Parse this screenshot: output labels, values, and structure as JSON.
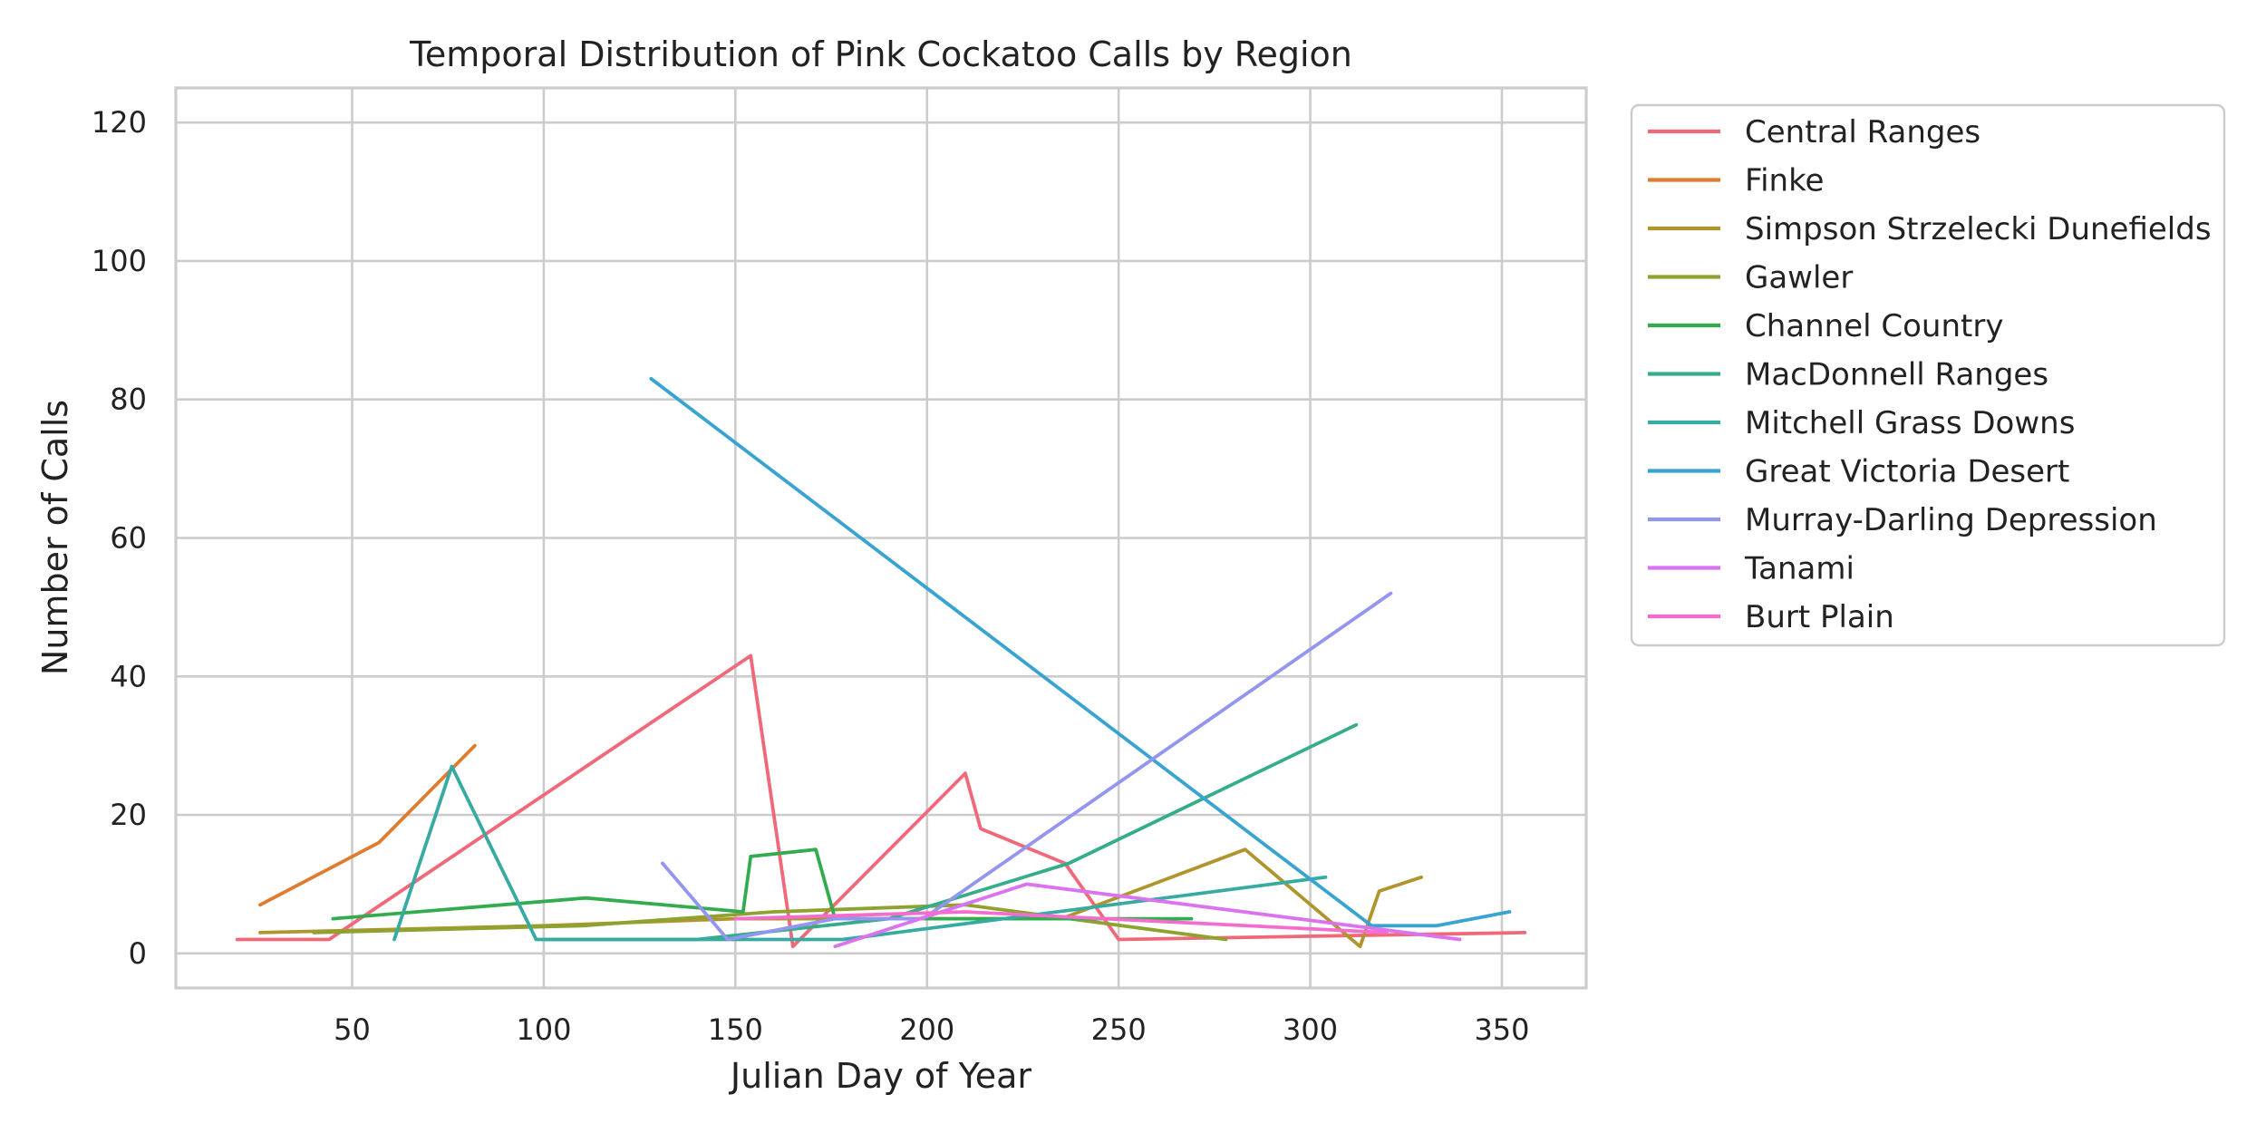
{
  "chart_data": {
    "type": "line",
    "title": "Temporal Distribution of Pink Cockatoo Calls by Region",
    "xlabel": "Julian Day of Year",
    "ylabel": "Number of Calls",
    "xlim": [
      4,
      372
    ],
    "ylim": [
      -5,
      125
    ],
    "xticks": [
      50,
      100,
      150,
      200,
      250,
      300,
      350
    ],
    "yticks": [
      0,
      20,
      40,
      60,
      80,
      100,
      120
    ],
    "grid": true,
    "legend_position": "upper right, outside plot",
    "series": [
      {
        "name": "Central Ranges",
        "color": "#f0697a",
        "x": [
          20,
          44,
          154,
          165,
          210,
          214,
          236,
          250,
          356
        ],
        "y": [
          2,
          2,
          43,
          1,
          26,
          18,
          13,
          2,
          3
        ]
      },
      {
        "name": "Finke",
        "color": "#e07c30",
        "x": [
          26,
          57,
          82
        ],
        "y": [
          7,
          16,
          30
        ]
      },
      {
        "name": "Simpson Strzelecki Dunefields",
        "color": "#b0952e",
        "x": [
          26,
          100,
          150,
          235,
          283,
          313,
          318,
          329
        ],
        "y": [
          3,
          4,
          5,
          5,
          15,
          1,
          9,
          11
        ]
      },
      {
        "name": "Gawler",
        "color": "#8ea22f",
        "x": [
          40,
          110,
          160,
          210,
          278
        ],
        "y": [
          3,
          4,
          6,
          7,
          2
        ]
      },
      {
        "name": "Channel Country",
        "color": "#33ac4f",
        "x": [
          45,
          111,
          152,
          154,
          171,
          176,
          269
        ],
        "y": [
          5,
          8,
          6,
          14,
          15,
          5,
          5
        ]
      },
      {
        "name": "MacDonnell Ranges",
        "color": "#35ad8a",
        "x": [
          100,
          140,
          190,
          237,
          312
        ],
        "y": [
          2,
          2,
          5,
          13,
          33
        ]
      },
      {
        "name": "Mitchell Grass Downs",
        "color": "#37aaa2",
        "x": [
          61,
          76,
          98,
          130,
          178,
          304
        ],
        "y": [
          2,
          27,
          2,
          2,
          2,
          11
        ]
      },
      {
        "name": "Great Victoria Desert",
        "color": "#39a3d2",
        "x": [
          128,
          316,
          333,
          352
        ],
        "y": [
          83,
          4,
          4,
          6
        ]
      },
      {
        "name": "Murray-Darling Depression",
        "color": "#9395ef",
        "x": [
          131,
          148,
          176,
          199,
          321
        ],
        "y": [
          13,
          2,
          5,
          5,
          52
        ]
      },
      {
        "name": "Tanami",
        "color": "#db72f0",
        "x": [
          176,
          226,
          339
        ],
        "y": [
          1,
          10,
          2
        ]
      },
      {
        "name": "Burt Plain",
        "color": "#f46dce",
        "x": [
          150,
          210,
          320
        ],
        "y": [
          5,
          6,
          3
        ]
      }
    ]
  }
}
